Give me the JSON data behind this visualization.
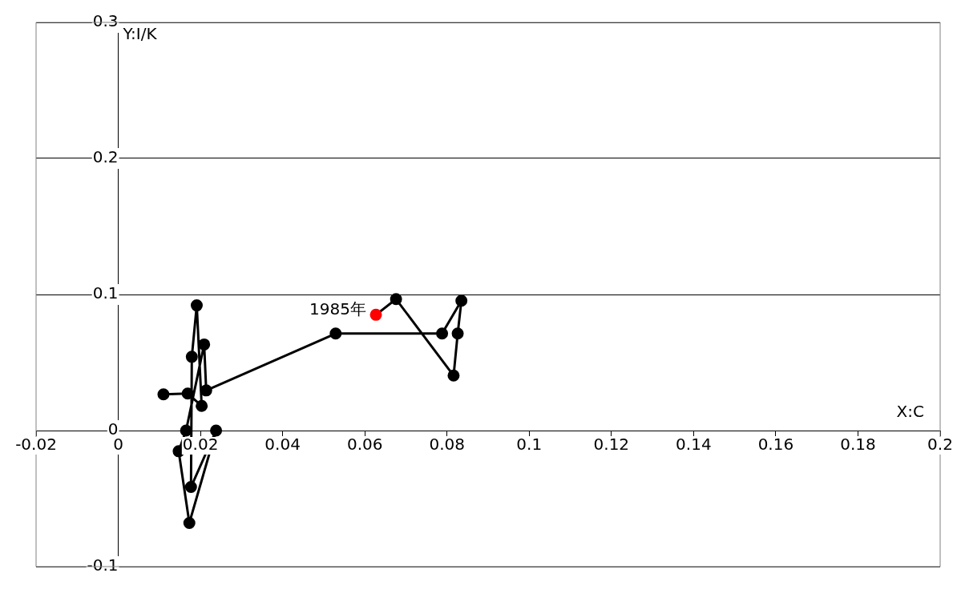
{
  "chart_data": {
    "type": "line",
    "xlabel": "X:C",
    "ylabel": "Y:I/K",
    "xlim": [
      -0.02,
      0.2
    ],
    "xticks": [
      -0.02,
      0,
      0.02,
      0.04,
      0.06,
      0.08,
      0.1,
      0.12,
      0.14,
      0.16,
      0.18,
      0.2
    ],
    "ylim": [
      -0.1,
      0.3
    ],
    "yticks": [
      -0.1,
      0,
      0.1,
      0.2,
      0.3
    ],
    "grid": "y",
    "marker": "circle",
    "line_style": "solid",
    "annotations": [
      {
        "text": "1985年",
        "x": 0.0627,
        "y": 0.0851
      }
    ],
    "series": [
      {
        "color": "#000000",
        "colors": [
          "#ff0000",
          "#000000",
          "#000000",
          "#000000",
          "#000000",
          "#000000",
          "#000000",
          "#000000",
          "#000000",
          "#000000",
          "#000000",
          "#000000",
          "#000000",
          "#000000",
          "#000000",
          "#000000",
          "#000000",
          "#000000",
          "#000000"
        ],
        "x": [
          0.0627,
          0.0676,
          0.0816,
          0.0826,
          0.0835,
          0.0788,
          0.0529,
          0.0214,
          0.0209,
          0.0165,
          0.0147,
          0.0173,
          0.0238,
          0.0177,
          0.0179,
          0.0191,
          0.0203,
          0.0169,
          0.011
        ],
        "values": [
          0.0851,
          0.0966,
          0.0404,
          0.0713,
          0.0954,
          0.0713,
          0.0713,
          0.0295,
          0.0633,
          0.0,
          -0.0152,
          -0.0679,
          0.0,
          -0.0415,
          0.0542,
          0.092,
          0.0181,
          0.0272,
          0.0266
        ]
      }
    ]
  }
}
